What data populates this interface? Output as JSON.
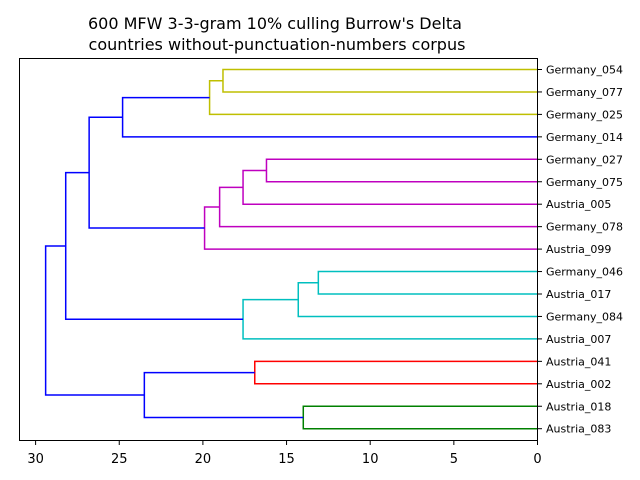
{
  "chart_data": {
    "type": "dendrogram",
    "title": [
      "600 MFW 3-3-gram 10% culling Burrow's Delta",
      "countries without-punctuation-numbers corpus"
    ],
    "orientation": "left",
    "x_axis": {
      "xlim": [
        31,
        0
      ],
      "ticks": [
        30,
        25,
        20,
        15,
        10,
        5,
        0
      ]
    },
    "leaves": [
      "Germany_054",
      "Germany_077",
      "Germany_025",
      "Germany_014",
      "Germany_027",
      "Germany_075",
      "Austria_005",
      "Germany_078",
      "Austria_099",
      "Germany_046",
      "Austria_017",
      "Germany_084",
      "Austria_007",
      "Austria_041",
      "Austria_002",
      "Austria_018",
      "Austria_083"
    ],
    "colors": {
      "c_yellow": "#bfbf00",
      "c_magenta": "#bf00bf",
      "c_cyan": "#00bfbf",
      "c_red": "#ff0000",
      "c_green": "#008000",
      "c_blue": "#0000ff"
    },
    "merges": [
      {
        "left": "Germany_054",
        "right": "Germany_077",
        "height": 18.8,
        "color": "c_yellow"
      },
      {
        "left": "m1",
        "right": "Germany_025",
        "height": 19.6,
        "color": "c_yellow"
      },
      {
        "left": "m2",
        "right": "Germany_014",
        "height": 24.8,
        "color": "c_blue"
      },
      {
        "left": "Germany_027",
        "right": "Germany_075",
        "height": 16.2,
        "color": "c_magenta"
      },
      {
        "left": "m4",
        "right": "Austria_005",
        "height": 17.6,
        "color": "c_magenta"
      },
      {
        "left": "m5",
        "right": "Germany_078",
        "height": 19.0,
        "color": "c_magenta"
      },
      {
        "left": "m6",
        "right": "Austria_099",
        "height": 19.9,
        "color": "c_magenta"
      },
      {
        "left": "m3",
        "right": "m7",
        "height": 26.8,
        "color": "c_blue"
      },
      {
        "left": "Germany_046",
        "right": "Austria_017",
        "height": 13.1,
        "color": "c_cyan"
      },
      {
        "left": "m9",
        "right": "Germany_084",
        "height": 14.3,
        "color": "c_cyan"
      },
      {
        "left": "m10",
        "right": "Austria_007",
        "height": 17.6,
        "color": "c_cyan"
      },
      {
        "left": "m8",
        "right": "m11",
        "height": 28.2,
        "color": "c_blue"
      },
      {
        "left": "Austria_041",
        "right": "Austria_002",
        "height": 16.9,
        "color": "c_red"
      },
      {
        "left": "Austria_018",
        "right": "Austria_083",
        "height": 14.0,
        "color": "c_green"
      },
      {
        "left": "m13",
        "right": "m14",
        "height": 23.5,
        "color": "c_blue"
      },
      {
        "left": "m12",
        "right": "m15",
        "height": 29.4,
        "color": "c_blue"
      }
    ]
  }
}
